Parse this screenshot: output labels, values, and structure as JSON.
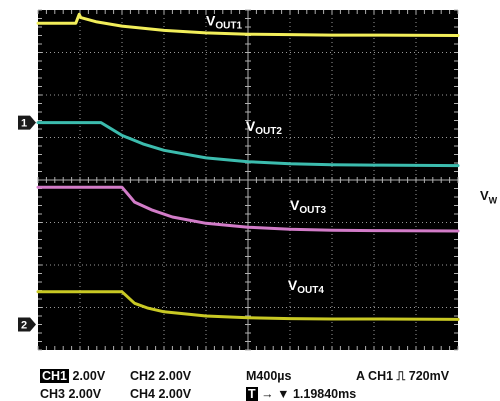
{
  "chart_data": {
    "type": "line",
    "title": "",
    "xlabel": "",
    "ylabel": "",
    "divisions": {
      "x": 10,
      "y": 8
    },
    "grid": true,
    "x_unit": "div",
    "y_unit": "div",
    "ground_markers": [
      {
        "label": "1",
        "y_div": 5.35
      },
      {
        "label": "2",
        "y_div": 0.6
      }
    ],
    "series": [
      {
        "name": "VOUT1",
        "label_main": "V",
        "label_sub": "OUT1",
        "color": "#f2ee5a",
        "label_at": [
          4.0,
          7.63
        ],
        "points": [
          [
            0.0,
            7.69
          ],
          [
            0.9,
            7.69
          ],
          [
            0.98,
            7.9
          ],
          [
            1.02,
            7.82
          ],
          [
            1.4,
            7.72
          ],
          [
            2.0,
            7.62
          ],
          [
            3.0,
            7.52
          ],
          [
            4.0,
            7.46
          ],
          [
            5.0,
            7.43
          ],
          [
            6.0,
            7.42
          ],
          [
            7.0,
            7.41
          ],
          [
            8.0,
            7.41
          ],
          [
            10.0,
            7.4
          ]
        ]
      },
      {
        "name": "VOUT2",
        "label_main": "V",
        "label_sub": "OUT2",
        "color": "#3cbcae",
        "label_at": [
          4.95,
          5.15
        ],
        "points": [
          [
            0.0,
            5.35
          ],
          [
            1.5,
            5.35
          ],
          [
            2.0,
            5.05
          ],
          [
            2.5,
            4.85
          ],
          [
            3.0,
            4.7
          ],
          [
            4.0,
            4.52
          ],
          [
            5.0,
            4.43
          ],
          [
            6.0,
            4.38
          ],
          [
            7.0,
            4.36
          ],
          [
            8.0,
            4.35
          ],
          [
            10.0,
            4.34
          ]
        ]
      },
      {
        "name": "VOUT3",
        "label_main": "V",
        "label_sub": "OUT3",
        "color": "#d27cc8",
        "label_at": [
          6.0,
          3.3
        ],
        "points": [
          [
            0.0,
            3.83
          ],
          [
            2.0,
            3.83
          ],
          [
            2.3,
            3.48
          ],
          [
            2.7,
            3.3
          ],
          [
            3.2,
            3.13
          ],
          [
            4.0,
            2.98
          ],
          [
            5.0,
            2.89
          ],
          [
            6.0,
            2.84
          ],
          [
            7.0,
            2.82
          ],
          [
            8.0,
            2.81
          ],
          [
            10.0,
            2.8
          ]
        ]
      },
      {
        "name": "VOUT4",
        "label_main": "V",
        "label_sub": "OUT4",
        "color": "#c9c924",
        "label_at": [
          5.95,
          1.41
        ],
        "points": [
          [
            0.0,
            1.37
          ],
          [
            2.0,
            1.37
          ],
          [
            2.3,
            1.1
          ],
          [
            2.6,
            0.99
          ],
          [
            3.0,
            0.9
          ],
          [
            4.0,
            0.8
          ],
          [
            5.0,
            0.76
          ],
          [
            6.0,
            0.74
          ],
          [
            7.0,
            0.73
          ],
          [
            8.0,
            0.73
          ],
          [
            10.0,
            0.72
          ]
        ]
      }
    ]
  },
  "right_label": {
    "main": "V",
    "sub": "W"
  },
  "status": {
    "ch1_badge": "CH1",
    "ch1_scale": "2.00V",
    "ch2": "CH2  2.00V",
    "timebase": "M400µs",
    "trigger": "A  CH1 ⎍ 720mV",
    "ch3": "CH3  2.00V",
    "ch4": "CH4  2.00V",
    "t_badge": "T",
    "t_offset": "→ ▼ 1.19840ms"
  }
}
